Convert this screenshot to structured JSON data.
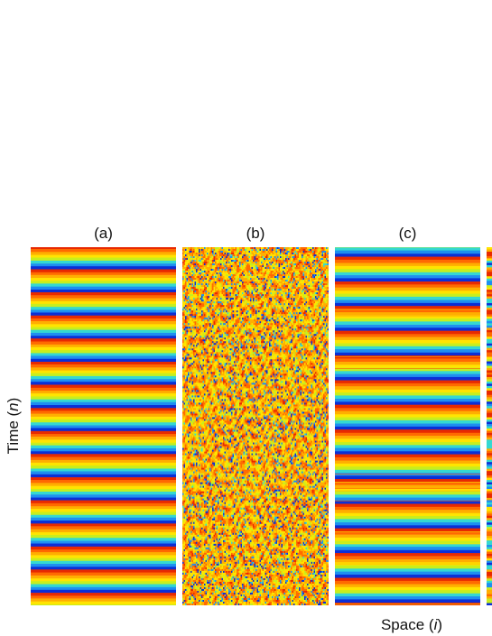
{
  "chart_data": {
    "type": "heatmap",
    "colormap": [
      "#0b2fd6",
      "#1f8ff0",
      "#34d8d2",
      "#c8ee1e",
      "#ffe400",
      "#ffae00",
      "#ff6a00",
      "#e82a00"
    ],
    "xlabel": "Space (",
    "xlabel_var": "i",
    "xlabel_close": ")",
    "ylabel": "Time (",
    "ylabel_var": "n",
    "ylabel_close": ")",
    "panels": [
      {
        "label": "(a)",
        "pattern": "uniform periodic stripes",
        "stripe_periods": 15.5,
        "phase": 0.05
      },
      {
        "label": "(b)",
        "pattern": "spatiotemporal chaos"
      },
      {
        "label": "(c)",
        "pattern": "uniform periodic stripes with defects",
        "stripe_periods": 14.5,
        "phase": 0.62
      },
      {
        "label": "",
        "pattern": "partially visible panel, cut off at right edge"
      }
    ]
  }
}
